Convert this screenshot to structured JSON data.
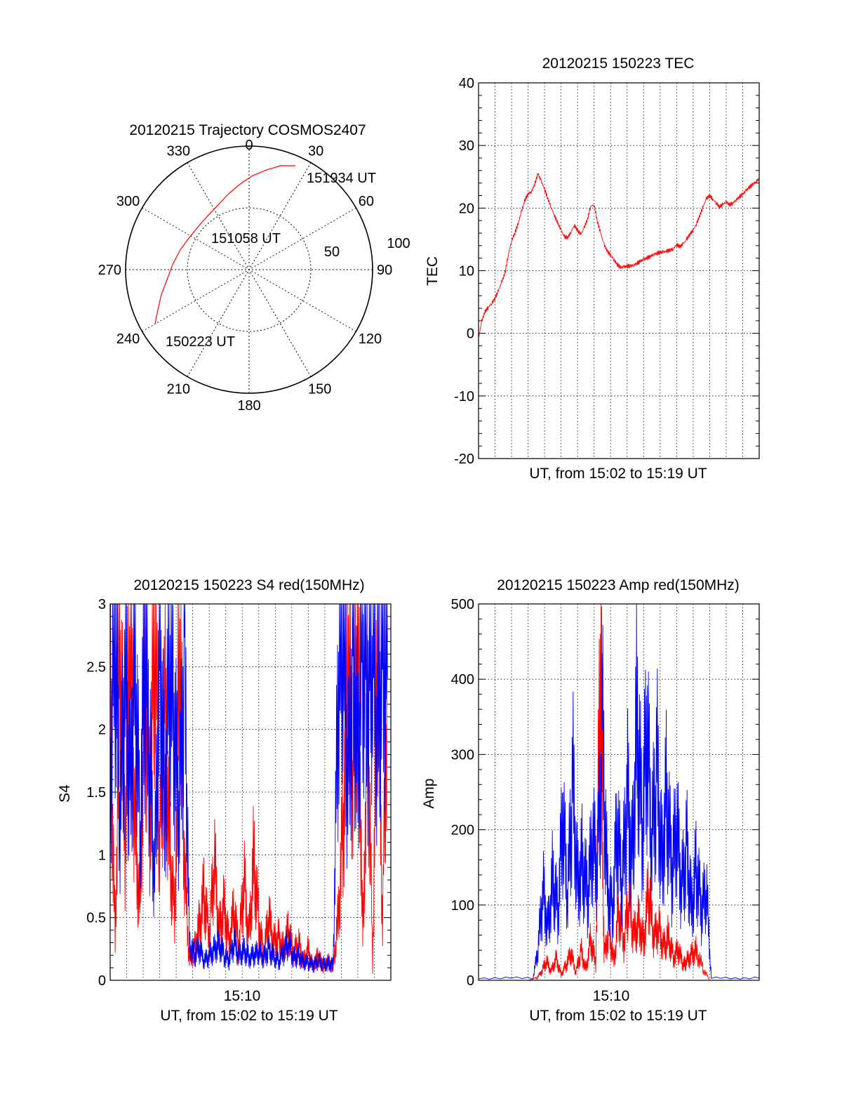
{
  "chart_data": [
    {
      "type": "polar",
      "title": "20120215 Trajectory COSMOS2407",
      "angle_labels": [
        "0",
        "30",
        "60",
        "90",
        "120",
        "150",
        "180",
        "210",
        "240",
        "270",
        "300",
        "330"
      ],
      "radial_labels": [
        "50",
        "100"
      ],
      "rlim": [
        0,
        100
      ],
      "grid": true,
      "series": [
        {
          "color": "#ff0000",
          "points": [
            {
              "az": 240,
              "r": 88
            },
            {
              "az": 246,
              "r": 81
            },
            {
              "az": 254,
              "r": 74
            },
            {
              "az": 263,
              "r": 67
            },
            {
              "az": 274,
              "r": 62
            },
            {
              "az": 286,
              "r": 58
            },
            {
              "az": 298,
              "r": 55
            },
            {
              "az": 311,
              "r": 54
            },
            {
              "az": 323,
              "r": 55
            },
            {
              "az": 334,
              "r": 58
            },
            {
              "az": 344,
              "r": 63
            },
            {
              "az": 353,
              "r": 69
            },
            {
              "az": 2,
              "r": 76
            },
            {
              "az": 10,
              "r": 82
            },
            {
              "az": 17,
              "r": 88
            },
            {
              "az": 24,
              "r": 92
            }
          ]
        }
      ],
      "annotations": [
        "151934 UT",
        "151058 UT",
        "150223 UT"
      ]
    },
    {
      "type": "line",
      "title": "20120215 150223 TEC",
      "xlabel": "UT, from 15:02 to 15:19 UT",
      "ylabel": "TEC",
      "xlim": [
        0,
        17
      ],
      "ylim": [
        -20,
        40
      ],
      "y_ticks": [
        "40",
        "30",
        "20",
        "10",
        "0",
        "-10",
        "-20"
      ],
      "grid": true,
      "series": [
        {
          "color": "#ff0000",
          "x": [
            0,
            0.2,
            0.4,
            0.6,
            0.8,
            1.0,
            1.2,
            1.4,
            1.6,
            1.8,
            2.0,
            2.2,
            2.4,
            2.6,
            2.8,
            3.0,
            3.2,
            3.4,
            3.6,
            3.8,
            4.0,
            4.2,
            4.4,
            4.6,
            4.8,
            5.0,
            5.2,
            5.4,
            5.6,
            5.8,
            6.0,
            6.2,
            6.4,
            6.6,
            6.8,
            7.0,
            7.2,
            7.4,
            7.6,
            7.8,
            8.0,
            8.2,
            8.4,
            8.6,
            8.8,
            9.0,
            9.2,
            9.4,
            9.6,
            9.8,
            10.0,
            10.2,
            10.4,
            10.6,
            10.8,
            11.0,
            11.2,
            11.4,
            11.6,
            11.8,
            12.0,
            12.2,
            12.4,
            12.6,
            12.8,
            13.0,
            13.2,
            13.4,
            13.6,
            13.8,
            14.0,
            14.2,
            14.4,
            14.6,
            14.8,
            15.0,
            15.2,
            15.4,
            15.6,
            15.8,
            16.0,
            16.2,
            16.4,
            16.6,
            16.8,
            17.0
          ],
          "values": [
            -0.8,
            2.0,
            3.5,
            4.2,
            4.8,
            5.6,
            6.8,
            8.2,
            9.6,
            12.5,
            14.8,
            16.0,
            17.5,
            19.5,
            21.2,
            22.3,
            22.6,
            23.8,
            25.5,
            24.3,
            23.0,
            21.5,
            20.1,
            18.8,
            17.6,
            16.5,
            15.4,
            15.3,
            16.2,
            17.3,
            16.4,
            15.8,
            16.9,
            18.2,
            20.3,
            20.5,
            17.8,
            16.0,
            14.2,
            13.1,
            12.5,
            11.8,
            11.0,
            10.5,
            10.6,
            10.7,
            10.8,
            10.9,
            11.2,
            11.5,
            11.8,
            12.0,
            12.3,
            12.6,
            12.8,
            12.9,
            13.0,
            13.1,
            13.3,
            13.5,
            14.2,
            13.8,
            14.3,
            15.0,
            15.8,
            16.5,
            17.5,
            18.8,
            20.2,
            21.5,
            22.0,
            21.4,
            20.8,
            20.2,
            20.6,
            21.0,
            20.5,
            20.8,
            21.3,
            21.8,
            22.2,
            22.8,
            23.3,
            23.8,
            24.2,
            24.7
          ]
        }
      ]
    },
    {
      "type": "line",
      "title": "20120215 150223 S4 red(150MHz)",
      "xlabel": "UT, from 15:02 to 15:19 UT",
      "ylabel": "S4",
      "xlim": [
        0,
        17
      ],
      "x_tick_label": "15:10",
      "ylim": [
        0,
        3
      ],
      "y_ticks": [
        "3",
        "2.5",
        "2",
        "1.5",
        "1",
        "0.5",
        "0"
      ],
      "grid": true,
      "series": [
        {
          "color": "#ff0000",
          "x": [
            0,
            0.3,
            0.6,
            0.9,
            1.2,
            1.5,
            1.8,
            2.1,
            2.4,
            2.7,
            3.0,
            3.3,
            3.6,
            3.9,
            4.2,
            4.5,
            4.8,
            5.1,
            5.4,
            5.7,
            6.0,
            6.3,
            6.6,
            6.9,
            7.2,
            7.5,
            7.8,
            8.1,
            8.4,
            8.7,
            9.0,
            9.3,
            9.6,
            9.9,
            10.2,
            10.5,
            10.8,
            11.1,
            11.4,
            11.7,
            12.0,
            12.3,
            12.6,
            12.9,
            13.2,
            13.5,
            13.8,
            14.1,
            14.4,
            14.7,
            15.0,
            15.3,
            15.6,
            15.9,
            16.2,
            16.5,
            16.8
          ],
          "values": [
            2.4,
            0.3,
            2.8,
            1.1,
            2.9,
            1.2,
            0.6,
            2.6,
            1.3,
            2.9,
            1.0,
            2.2,
            1.1,
            0.5,
            2.7,
            0.9,
            0.15,
            0.25,
            0.45,
            0.7,
            0.3,
            0.95,
            0.4,
            0.6,
            0.3,
            0.55,
            0.25,
            0.8,
            0.35,
            1.0,
            0.45,
            0.2,
            0.5,
            0.3,
            0.35,
            0.25,
            0.4,
            0.2,
            0.3,
            0.15,
            0.25,
            0.1,
            0.2,
            0.1,
            0.15,
            0.1,
            0.5,
            1.2,
            2.5,
            1.6,
            2.9,
            0.3,
            2.2,
            0.1,
            2.8,
            0.4,
            2.7
          ]
        },
        {
          "color": "#0000ff",
          "x": [
            0,
            0.3,
            0.6,
            0.9,
            1.2,
            1.5,
            1.8,
            2.1,
            2.4,
            2.7,
            3.0,
            3.3,
            3.6,
            3.9,
            4.2,
            4.5,
            4.8,
            5.1,
            5.4,
            5.7,
            6.0,
            6.3,
            6.6,
            6.9,
            7.2,
            7.5,
            7.8,
            8.1,
            8.4,
            8.7,
            9.0,
            9.3,
            9.6,
            9.9,
            10.2,
            10.5,
            10.8,
            11.1,
            11.4,
            11.7,
            12.0,
            12.3,
            12.6,
            12.9,
            13.2,
            13.5,
            13.8,
            14.1,
            14.4,
            14.7,
            15.0,
            15.3,
            15.6,
            15.9,
            16.2,
            16.5,
            16.8
          ],
          "values": [
            1.6,
            2.9,
            1.2,
            2.5,
            1.5,
            2.8,
            1.1,
            2.6,
            1.7,
            0.8,
            2.9,
            1.4,
            2.6,
            1.9,
            1.3,
            2.8,
            0.3,
            0.2,
            0.25,
            0.15,
            0.2,
            0.25,
            0.3,
            0.2,
            0.15,
            0.3,
            0.2,
            0.25,
            0.18,
            0.2,
            0.22,
            0.18,
            0.25,
            0.2,
            0.15,
            0.22,
            0.3,
            0.18,
            0.2,
            0.15,
            0.14,
            0.12,
            0.15,
            0.13,
            0.14,
            0.12,
            2.2,
            2.9,
            1.5,
            2.7,
            1.8,
            2.95,
            2.1,
            2.8,
            1.9,
            2.9,
            2.4
          ]
        }
      ]
    },
    {
      "type": "line",
      "title": "20120215 150223 Amp red(150MHz)",
      "xlabel": "UT, from 15:02 to 15:19 UT",
      "ylabel": "Amp",
      "xlim": [
        0,
        17
      ],
      "x_tick_label": "15:10",
      "ylim": [
        0,
        500
      ],
      "y_ticks": [
        "500",
        "400",
        "300",
        "200",
        "100",
        "0"
      ],
      "grid": true,
      "series": [
        {
          "color": "#ff0000",
          "x": [
            0,
            3.0,
            3.5,
            3.8,
            4.1,
            4.4,
            4.7,
            5.0,
            5.3,
            5.6,
            5.9,
            6.2,
            6.5,
            6.8,
            7.1,
            7.4,
            7.6,
            7.9,
            8.2,
            8.5,
            8.8,
            9.1,
            9.4,
            9.7,
            10.0,
            10.3,
            10.6,
            10.9,
            11.2,
            11.5,
            11.8,
            12.1,
            12.4,
            12.6,
            12.9,
            13.2,
            13.6,
            14.0,
            17.0
          ],
          "values": [
            0,
            0,
            3,
            10,
            25,
            12,
            30,
            8,
            20,
            35,
            10,
            40,
            15,
            55,
            20,
            460,
            30,
            70,
            25,
            95,
            45,
            110,
            60,
            80,
            50,
            120,
            55,
            70,
            45,
            60,
            30,
            40,
            20,
            25,
            35,
            40,
            15,
            0,
            0
          ]
        },
        {
          "color": "#0000ff",
          "x": [
            0,
            3.3,
            3.6,
            3.9,
            4.2,
            4.5,
            4.8,
            5.1,
            5.4,
            5.7,
            6.0,
            6.3,
            6.6,
            6.9,
            7.2,
            7.5,
            7.8,
            8.1,
            8.4,
            8.7,
            9.0,
            9.3,
            9.6,
            9.9,
            10.2,
            10.5,
            10.8,
            11.1,
            11.4,
            11.7,
            12.0,
            12.3,
            12.6,
            12.9,
            13.2,
            13.5,
            13.8,
            14.1,
            17.0
          ],
          "values": [
            3,
            3,
            40,
            120,
            70,
            140,
            90,
            210,
            110,
            270,
            130,
            160,
            110,
            180,
            150,
            340,
            130,
            90,
            200,
            120,
            250,
            160,
            360,
            200,
            320,
            180,
            290,
            160,
            250,
            140,
            200,
            120,
            180,
            100,
            150,
            90,
            120,
            3,
            3
          ]
        }
      ]
    }
  ],
  "polar_labels": {
    "label_151934": "151934 UT",
    "label_151058": "151058 UT",
    "label_150223": "150223 UT"
  }
}
